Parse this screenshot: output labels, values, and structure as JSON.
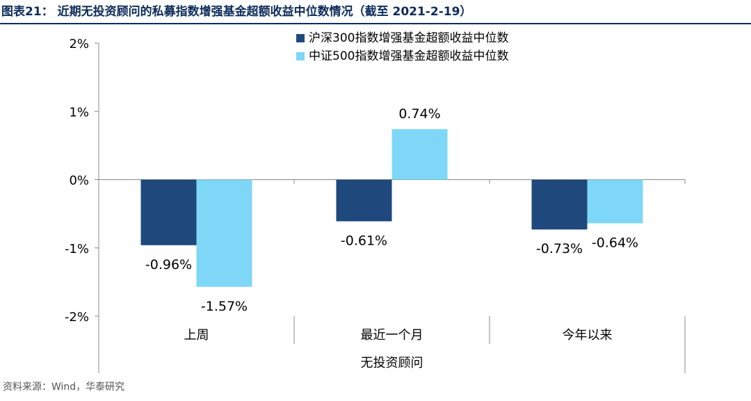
{
  "figure": {
    "title": "图表21：   近期无投资顾问的私募指数增强基金超额收益中位数情况（截至 2021-2-19）",
    "source": "资料来源：Wind，华泰研究"
  },
  "chart_data": {
    "type": "bar",
    "categories": [
      "上周",
      "最近一个月",
      "今年以来"
    ],
    "group_label": "无投资顾问",
    "series": [
      {
        "name": "沪深300指数增强基金超额收益中位数",
        "color": "#1f497d",
        "values": [
          -0.96,
          -0.61,
          -0.73
        ]
      },
      {
        "name": "中证500指数增强基金超额收益中位数",
        "color": "#7fd7f7",
        "values": [
          -1.57,
          0.74,
          -0.64
        ]
      }
    ],
    "data_labels": [
      [
        "-0.96%",
        "-0.61%",
        "-0.73%"
      ],
      [
        "-1.57%",
        "0.74%",
        "-0.64%"
      ]
    ],
    "ylim": [
      -2,
      2
    ],
    "yticks": [
      2,
      1,
      0,
      -1,
      -2
    ],
    "ytick_labels": [
      "2%",
      "1%",
      "0%",
      "-1%",
      "-2%"
    ],
    "legend_position": "top-center",
    "grid": false
  }
}
